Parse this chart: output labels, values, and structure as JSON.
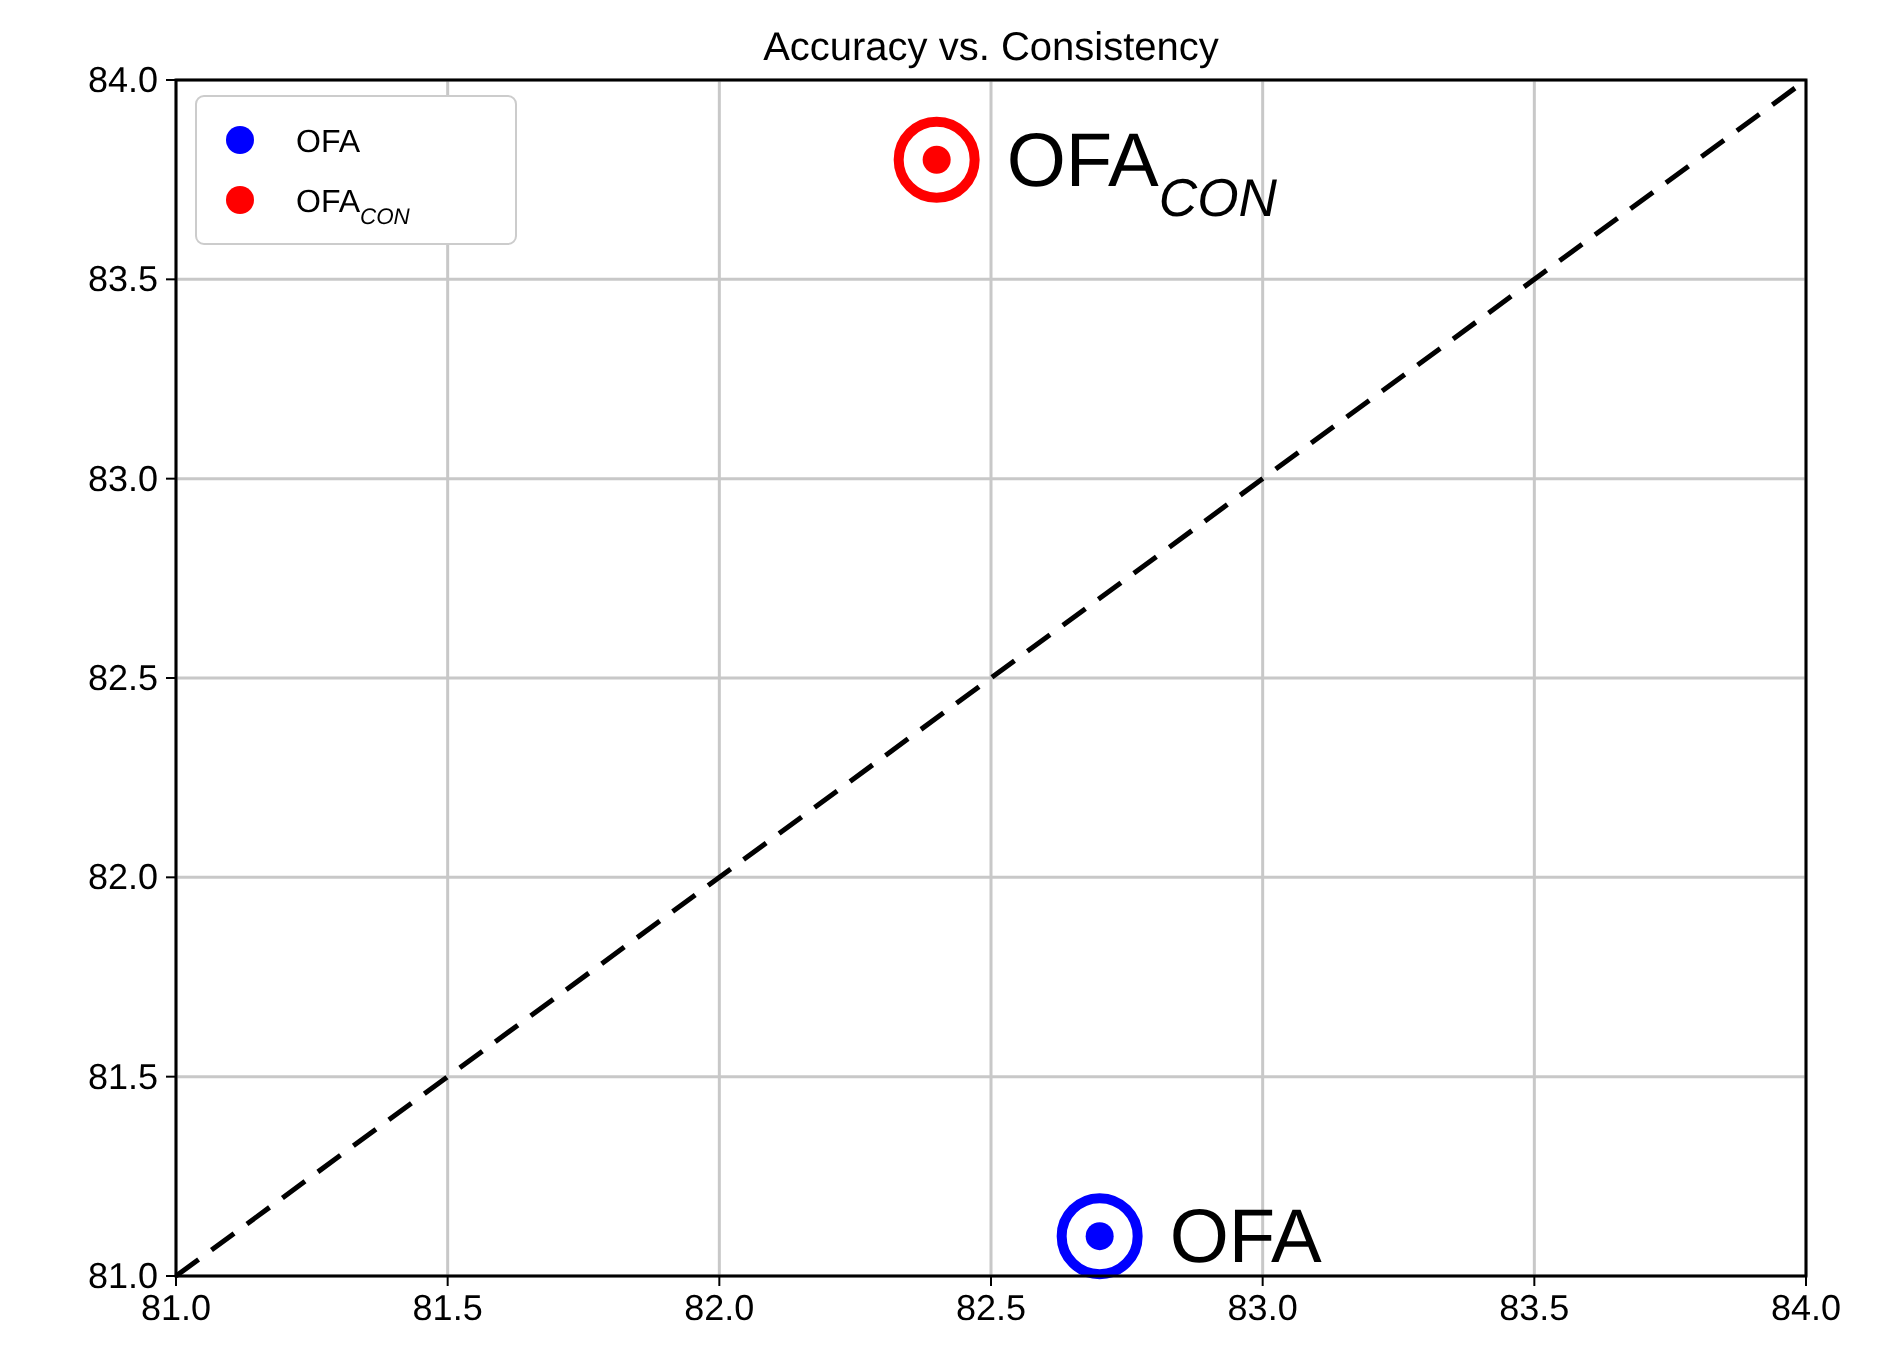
{
  "chart_data": {
    "type": "scatter",
    "title": "Accuracy vs. Consistency",
    "xlim": [
      81,
      84
    ],
    "ylim": [
      81,
      84
    ],
    "xticks": [
      {
        "value": 81,
        "label": "81.0"
      },
      {
        "value": 81.5,
        "label": "81.5"
      },
      {
        "value": 82,
        "label": "82.0"
      },
      {
        "value": 82.5,
        "label": "82.5"
      },
      {
        "value": 83,
        "label": "83.0"
      },
      {
        "value": 83.5,
        "label": "83.5"
      },
      {
        "value": 84,
        "label": "84.0"
      }
    ],
    "yticks": [
      {
        "value": 81,
        "label": "81.0"
      },
      {
        "value": 81.5,
        "label": "81.5"
      },
      {
        "value": 82,
        "label": "82.0"
      },
      {
        "value": 82.5,
        "label": "82.5"
      },
      {
        "value": 83,
        "label": "83.0"
      },
      {
        "value": 83.5,
        "label": "83.5"
      },
      {
        "value": 84,
        "label": "84.0"
      }
    ],
    "grid": true,
    "legend": "top left",
    "marker": "circle",
    "series": [
      {
        "name": "OFA",
        "color": "#0000ff",
        "x": [
          82.7
        ],
        "values": [
          81.1
        ]
      },
      {
        "name": "OFA$_{CON}$",
        "color": "#ff0000",
        "x": [
          82.4
        ],
        "values": [
          83.8
        ]
      },
      {
        "type": "line",
        "color": "#000000",
        "line_style": "dashed",
        "marker": "none",
        "x": [
          81,
          84
        ],
        "values": [
          81,
          84
        ]
      }
    ]
  }
}
